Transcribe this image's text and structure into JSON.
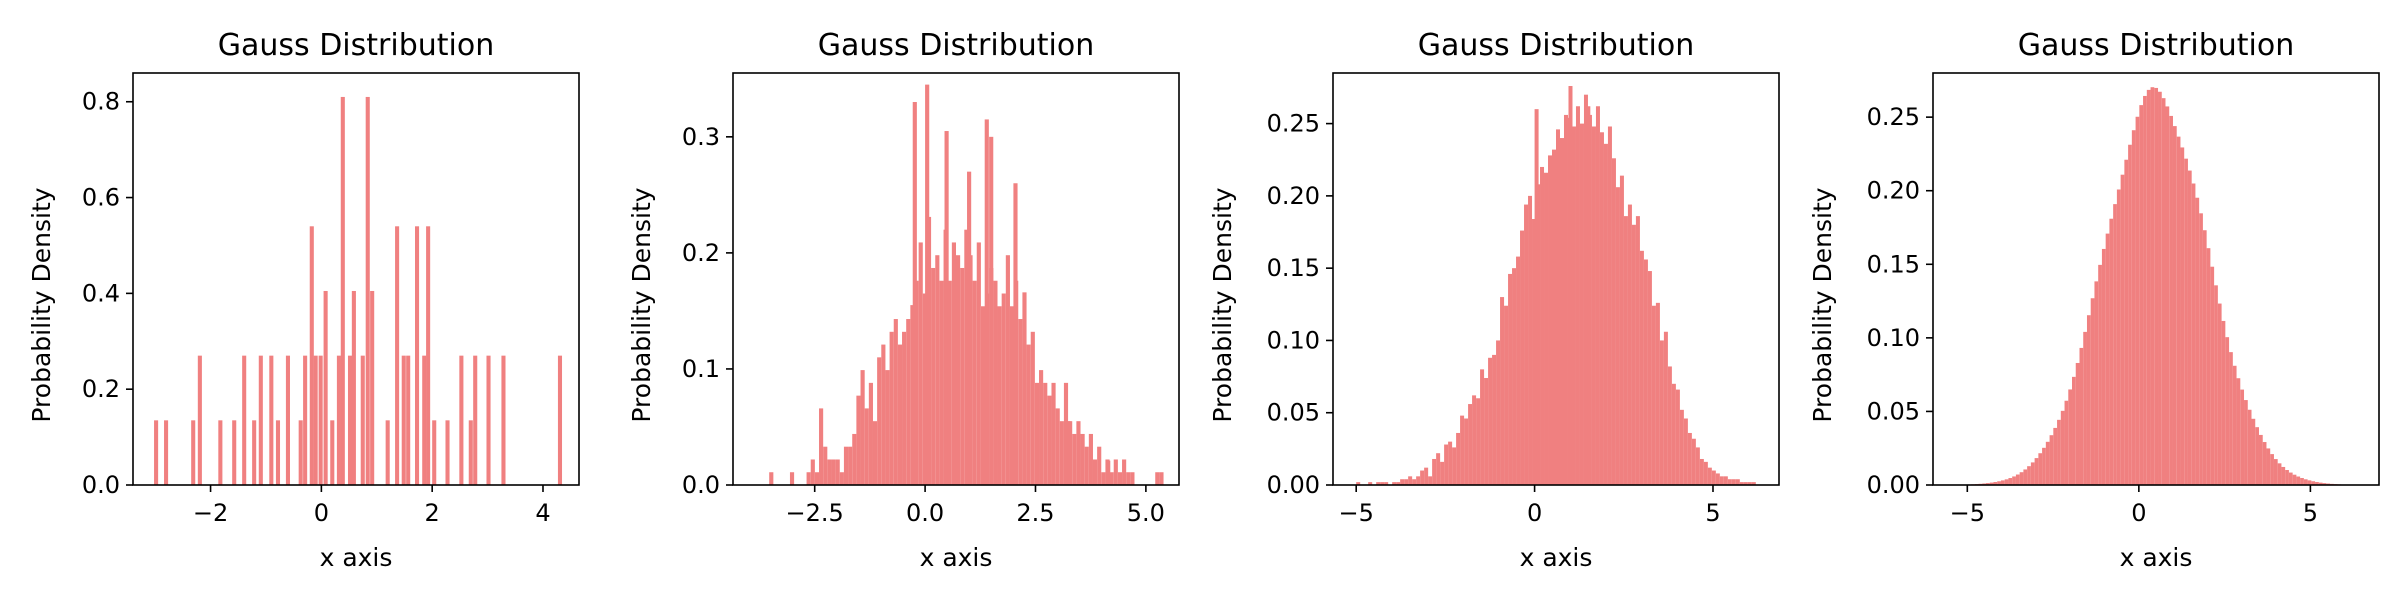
{
  "chart_data": [
    {
      "type": "histogram",
      "title": "Gauss Distribution",
      "xlabel": "x axis",
      "ylabel": "Probability Density",
      "xlim": [
        -3.4,
        4.65
      ],
      "ylim": [
        0,
        0.86
      ],
      "xticks": [
        -2,
        0,
        2,
        4
      ],
      "yticks": [
        0.0,
        0.2,
        0.4,
        0.6,
        0.8
      ],
      "xtick_labels": [
        "−2",
        "0",
        "2",
        "4"
      ],
      "ytick_labels": [
        "0.0",
        "0.2",
        "0.4",
        "0.6",
        "0.8"
      ],
      "bar_color": "#F08080",
      "bin_width": 0.0737,
      "bin_starts": [
        -3.02,
        -2.84,
        -2.35,
        -2.23,
        -1.86,
        -1.61,
        -1.43,
        -1.25,
        -1.13,
        -0.94,
        -0.82,
        -0.64,
        -0.41,
        -0.33,
        -0.21,
        -0.14,
        -0.05,
        0.04,
        0.16,
        0.28,
        0.35,
        0.48,
        0.55,
        0.71,
        0.8,
        0.88,
        1.16,
        1.33,
        1.45,
        1.53,
        1.69,
        1.82,
        1.89,
        2.0,
        2.24,
        2.49,
        2.66,
        2.74,
        2.98,
        3.25,
        4.27
      ],
      "values": [
        0.135,
        0.135,
        0.135,
        0.27,
        0.135,
        0.135,
        0.27,
        0.135,
        0.27,
        0.27,
        0.135,
        0.27,
        0.135,
        0.27,
        0.54,
        0.27,
        0.27,
        0.405,
        0.135,
        0.27,
        0.81,
        0.27,
        0.405,
        0.27,
        0.81,
        0.405,
        0.135,
        0.54,
        0.27,
        0.27,
        0.54,
        0.27,
        0.54,
        0.135,
        0.135,
        0.27,
        0.135,
        0.27,
        0.27,
        0.27,
        0.27
      ]
    },
    {
      "type": "histogram",
      "title": "Gauss Distribution",
      "xlabel": "x axis",
      "ylabel": "Probability Density",
      "xlim": [
        -4.35,
        5.75
      ],
      "ylim": [
        0,
        0.355
      ],
      "xticks": [
        -2.5,
        0.0,
        2.5,
        5.0
      ],
      "yticks": [
        0.0,
        0.1,
        0.2,
        0.3
      ],
      "xtick_labels": [
        "−2.5",
        "0.0",
        "2.5",
        "5.0"
      ],
      "ytick_labels": [
        "0.0",
        "0.1",
        "0.2",
        "0.3"
      ],
      "bar_color": "#F08080",
      "bin_start": -4.0,
      "bin_width": 0.094,
      "values": [
        0,
        0,
        0,
        0,
        0,
        0.011,
        0,
        0,
        0,
        0,
        0.011,
        0,
        0,
        0,
        0.011,
        0.022,
        0.011,
        0.066,
        0.033,
        0.022,
        0.022,
        0.022,
        0.011,
        0.033,
        0.033,
        0.044,
        0.077,
        0.099,
        0.066,
        0.088,
        0.055,
        0.11,
        0.121,
        0.099,
        0.132,
        0.143,
        0.121,
        0.132,
        0.143,
        0.155,
        0.176,
        0.209,
        0.165,
        0.231,
        0.187,
        0.198,
        0.176,
        0.22,
        0.176,
        0.209,
        0.198,
        0.187,
        0.22,
        0.198,
        0.176,
        0.209,
        0.154,
        0.165,
        0.187,
        0.176,
        0.154,
        0.165,
        0.198,
        0.154,
        0.176,
        0.143,
        0.166,
        0.121,
        0.132,
        0.088,
        0.099,
        0.088,
        0.077,
        0.088,
        0.066,
        0.055,
        0.088,
        0.055,
        0.044,
        0.055,
        0.044,
        0.033,
        0.044,
        0.022,
        0.033,
        0.011,
        0.022,
        0.011,
        0.022,
        0.011,
        0.022,
        0.011,
        0.011,
        0,
        0,
        0,
        0,
        0,
        0.011,
        0.011
      ],
      "spikes": [
        [
          0.0,
          0.345
        ],
        [
          1.35,
          0.315
        ],
        [
          -0.28,
          0.33
        ],
        [
          0.44,
          0.305
        ],
        [
          1.45,
          0.3
        ],
        [
          0.95,
          0.27
        ],
        [
          2.0,
          0.26
        ],
        [
          3.2,
          0.055
        ],
        [
          4.1,
          0.021
        ]
      ]
    },
    {
      "type": "histogram",
      "title": "Gauss Distribution",
      "xlabel": "x axis",
      "ylabel": "Probability Density",
      "xlim": [
        -5.65,
        6.85
      ],
      "ylim": [
        0,
        0.285
      ],
      "xticks": [
        -5,
        0,
        5
      ],
      "yticks": [
        0.0,
        0.05,
        0.1,
        0.15,
        0.2,
        0.25
      ],
      "xtick_labels": [
        "−5",
        "0",
        "5"
      ],
      "ytick_labels": [
        "0.00",
        "0.05",
        "0.10",
        "0.15",
        "0.20",
        "0.25"
      ],
      "bar_color": "#F08080",
      "bin_start": -5.0,
      "bin_width": 0.112,
      "values": [
        0.002,
        0,
        0,
        0.002,
        0,
        0.002,
        0.002,
        0.002,
        0,
        0.002,
        0.002,
        0.004,
        0.004,
        0.006,
        0.004,
        0.006,
        0.01,
        0.012,
        0.006,
        0.018,
        0.022,
        0.016,
        0.028,
        0.03,
        0.026,
        0.036,
        0.048,
        0.046,
        0.056,
        0.062,
        0.06,
        0.08,
        0.074,
        0.088,
        0.09,
        0.1,
        0.13,
        0.124,
        0.146,
        0.15,
        0.158,
        0.176,
        0.194,
        0.2,
        0.184,
        0.208,
        0.22,
        0.216,
        0.228,
        0.232,
        0.246,
        0.24,
        0.256,
        0.254,
        0.248,
        0.262,
        0.25,
        0.27,
        0.256,
        0.248,
        0.262,
        0.244,
        0.236,
        0.248,
        0.226,
        0.206,
        0.214,
        0.186,
        0.194,
        0.18,
        0.186,
        0.162,
        0.156,
        0.148,
        0.124,
        0.126,
        0.1,
        0.106,
        0.082,
        0.07,
        0.066,
        0.052,
        0.046,
        0.036,
        0.032,
        0.026,
        0.018,
        0.016,
        0.012,
        0.01,
        0.008,
        0.006,
        0.006,
        0.004,
        0.004,
        0.004,
        0.002,
        0.002,
        0.002,
        0.002
      ],
      "spikes": [
        [
          0.95,
          0.276
        ],
        [
          0.0,
          0.26
        ],
        [
          1.45,
          0.262
        ]
      ]
    },
    {
      "type": "histogram",
      "title": "Gauss Distribution",
      "xlabel": "x axis",
      "ylabel": "Probability Density",
      "xlim": [
        -6.0,
        7.0
      ],
      "ylim": [
        0,
        0.28
      ],
      "xticks": [
        -5,
        0,
        5
      ],
      "yticks": [
        0.0,
        0.05,
        0.1,
        0.15,
        0.2,
        0.25
      ],
      "xtick_labels": [
        "−5",
        "0",
        "5"
      ],
      "ytick_labels": [
        "0.00",
        "0.05",
        "0.10",
        "0.15",
        "0.20",
        "0.25"
      ],
      "bar_color": "#F08080",
      "gaussian_mean": 0.5,
      "gaussian_sd": 1.5,
      "x_range": [
        -5.0,
        5.9
      ],
      "bins": 100
    }
  ]
}
